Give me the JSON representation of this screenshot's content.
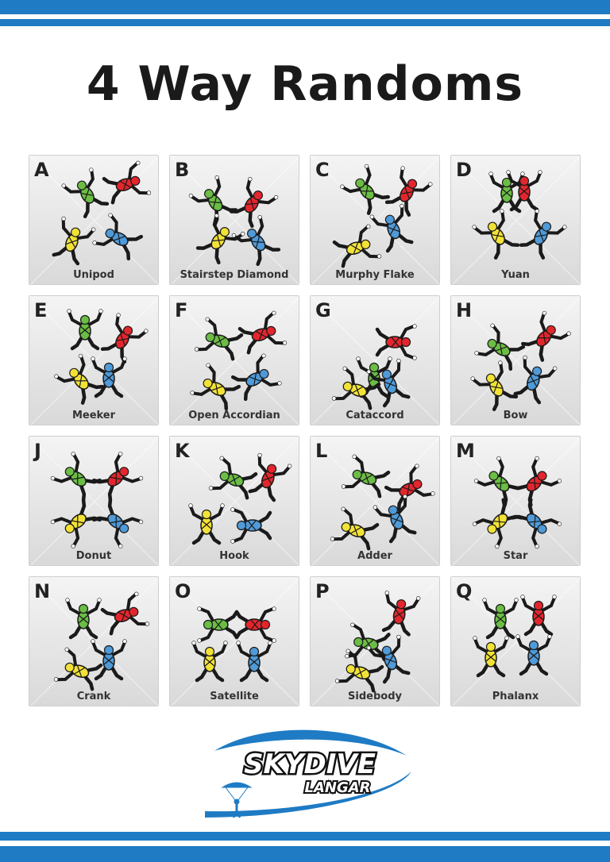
{
  "title": "4 Way Randoms",
  "colors": {
    "brand_blue": "#1e7bc4",
    "card_bg_top": "#f4f4f4",
    "card_bg_bottom": "#d9d9d9",
    "jumper_red": "#e3262d",
    "jumper_green": "#6bbd45",
    "jumper_blue": "#4f9ad8",
    "jumper_yellow": "#f2e237",
    "suit_dark": "#1a1a1a"
  },
  "formations": [
    {
      "letter": "A",
      "name": "Unipod"
    },
    {
      "letter": "B",
      "name": "Stairstep Diamond"
    },
    {
      "letter": "C",
      "name": "Murphy Flake"
    },
    {
      "letter": "D",
      "name": "Yuan"
    },
    {
      "letter": "E",
      "name": "Meeker"
    },
    {
      "letter": "F",
      "name": "Open Accordian"
    },
    {
      "letter": "G",
      "name": "Cataccord"
    },
    {
      "letter": "H",
      "name": "Bow"
    },
    {
      "letter": "J",
      "name": "Donut"
    },
    {
      "letter": "K",
      "name": "Hook"
    },
    {
      "letter": "L",
      "name": "Adder"
    },
    {
      "letter": "M",
      "name": "Star"
    },
    {
      "letter": "N",
      "name": "Crank"
    },
    {
      "letter": "O",
      "name": "Satellite"
    },
    {
      "letter": "P",
      "name": "Sidebody"
    },
    {
      "letter": "Q",
      "name": "Phalanx"
    }
  ],
  "logo": {
    "line1": "SKYDIVE",
    "line2": "LANGAR",
    "icon": "parachutist-swoosh-icon"
  }
}
